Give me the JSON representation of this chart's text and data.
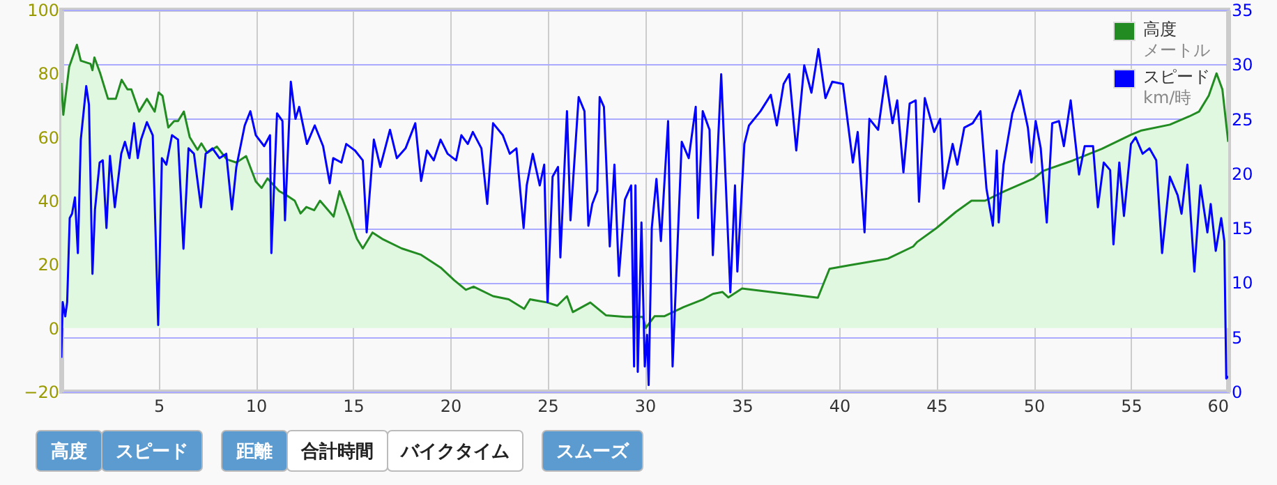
{
  "chart_data": {
    "type": "area",
    "xlim": [
      0,
      60
    ],
    "xticks": [
      5,
      10,
      15,
      20,
      25,
      30,
      35,
      40,
      45,
      50,
      55,
      60
    ],
    "ylim": [
      -20,
      100
    ],
    "yticks": [
      -20,
      0,
      20,
      40,
      60,
      80,
      100
    ],
    "y2lim": [
      0,
      35
    ],
    "y2ticks": [
      0,
      5,
      10,
      15,
      20,
      25,
      30,
      35
    ],
    "grid": true,
    "legend": "top right",
    "annotations": [
      "メートル",
      "km/時",
      "高度",
      "スピード",
      "距離",
      "合計時間",
      "バイクタイム",
      "スムーズ"
    ],
    "series": [
      {
        "name": "高度",
        "color": "#228b22",
        "x": [
          0,
          0.1,
          0.4,
          0.8,
          1.0,
          1.5,
          1.6,
          1.7,
          2.0,
          2.4,
          2.8,
          3.1,
          3.4,
          3.6,
          4.0,
          4.4,
          4.8,
          5.0,
          5.2,
          5.5,
          5.8,
          6.0,
          6.3,
          6.6,
          7.0,
          7.2,
          7.5,
          8.0,
          8.5,
          9.0,
          9.5,
          10.0,
          10.3,
          10.6,
          11.2,
          11.5,
          12.0,
          12.3,
          12.6,
          13.0,
          13.3,
          14.0,
          14.3,
          14.8,
          15.2,
          15.5,
          16.0,
          16.5,
          17.5,
          18.5,
          19.5,
          20.2,
          20.8,
          21.2,
          22.2,
          23.0,
          23.8,
          24.1,
          25.0,
          25.5,
          26.0,
          26.3,
          27.2,
          28.0,
          29.0,
          29.9,
          30.05,
          30.5,
          31.0,
          32.0,
          33.0,
          33.5,
          34.0,
          34.3,
          35.0,
          38.9,
          39.5,
          40.5,
          42.5,
          43.8,
          44.0,
          45.0,
          46.0,
          46.8,
          47.5,
          48.5,
          50.0,
          50.5,
          52.0,
          53.5,
          55.0,
          55.5,
          57.0,
          58.0,
          58.5,
          59.0,
          59.4,
          59.7,
          60.0
        ],
        "values": [
          77,
          67,
          82,
          89,
          84,
          83,
          81,
          85,
          80,
          72,
          72,
          78,
          75,
          75,
          68,
          72,
          68,
          74,
          73,
          63,
          65,
          65,
          68,
          60,
          56,
          58,
          55,
          57,
          53,
          52,
          54,
          46,
          44,
          47,
          43,
          42,
          40,
          36,
          38,
          37,
          40,
          35,
          43,
          35,
          28,
          25,
          30,
          28,
          25,
          23,
          19,
          15,
          12,
          13,
          10,
          9,
          6,
          9,
          8,
          7,
          10,
          5,
          8,
          4,
          3.5,
          3.5,
          0,
          3.7,
          3.7,
          6.6,
          9,
          10.7,
          11.3,
          9.6,
          12.4,
          9.5,
          18.6,
          19.7,
          21.8,
          25.6,
          27,
          31.4,
          36.5,
          40,
          40,
          43,
          47,
          49.4,
          52.6,
          56.3,
          60.7,
          62,
          63.9,
          66.5,
          68,
          73,
          80,
          75,
          58.5
        ]
      },
      {
        "name": "スピード",
        "type": "line",
        "axis": "y2",
        "color": "#0000ff",
        "x": [
          0,
          0.07,
          0.2,
          0.3,
          0.43,
          0.55,
          0.7,
          0.85,
          1.0,
          1.28,
          1.42,
          1.6,
          1.73,
          1.97,
          2.13,
          2.32,
          2.5,
          2.75,
          3.08,
          3.27,
          3.5,
          3.74,
          3.93,
          4.1,
          4.4,
          4.7,
          4.98,
          5.17,
          5.4,
          5.69,
          6.0,
          6.28,
          6.54,
          6.82,
          7.18,
          7.42,
          7.77,
          8.13,
          8.48,
          8.77,
          9.0,
          9.43,
          9.72,
          10.0,
          10.43,
          10.73,
          10.8,
          11.09,
          11.37,
          11.5,
          11.8,
          12.04,
          12.23,
          12.63,
          13.03,
          13.46,
          13.8,
          13.98,
          14.4,
          14.65,
          15.1,
          15.5,
          15.7,
          16.07,
          16.4,
          16.9,
          17.25,
          17.7,
          18.2,
          18.5,
          18.8,
          19.15,
          19.5,
          19.86,
          20.3,
          20.57,
          20.9,
          21.16,
          21.6,
          21.9,
          22.2,
          22.7,
          23.06,
          23.4,
          23.77,
          23.93,
          24.24,
          24.6,
          24.83,
          25.0,
          25.26,
          25.54,
          25.66,
          26.0,
          26.18,
          26.6,
          26.9,
          27.1,
          27.3,
          27.56,
          27.68,
          27.9,
          28.2,
          28.44,
          28.67,
          28.98,
          29.3,
          29.45,
          29.52,
          29.64,
          29.83,
          30.0,
          30.12,
          30.2,
          30.36,
          30.6,
          30.83,
          31.2,
          31.43,
          31.9,
          32.26,
          32.62,
          32.74,
          32.98,
          33.33,
          33.5,
          33.93,
          34.4,
          34.64,
          34.76,
          35.12,
          35.36,
          35.95,
          36.48,
          36.79,
          37.14,
          37.43,
          37.79,
          38.2,
          38.57,
          38.93,
          39.29,
          39.64,
          40.19,
          40.7,
          40.95,
          41.3,
          41.55,
          42.0,
          42.38,
          42.74,
          42.98,
          43.3,
          43.62,
          43.93,
          44.1,
          44.4,
          44.88,
          45.19,
          45.36,
          45.83,
          46.07,
          46.43,
          46.86,
          47.26,
          47.57,
          47.9,
          48.1,
          48.2,
          48.45,
          48.9,
          49.3,
          49.7,
          49.88,
          50.1,
          50.36,
          50.67,
          50.95,
          51.3,
          51.55,
          51.9,
          52.33,
          52.62,
          53.05,
          53.3,
          53.6,
          53.93,
          54.1,
          54.4,
          54.64,
          55.0,
          55.24,
          55.6,
          55.95,
          56.3,
          56.6,
          57.0,
          57.4,
          57.6,
          57.9,
          58.26,
          58.57,
          58.93,
          59.1,
          59.36,
          59.64,
          59.8,
          59.9,
          60.0
        ],
        "values": [
          3.1,
          8.2,
          6.9,
          8.2,
          15.9,
          16.3,
          17.8,
          12.7,
          23.1,
          28,
          26.3,
          10.8,
          16.7,
          21,
          21.2,
          15,
          21.6,
          16.9,
          21.8,
          22.9,
          21.4,
          24.6,
          21.4,
          23.1,
          24.7,
          23.5,
          6.1,
          21.4,
          20.8,
          23.5,
          23.1,
          13.1,
          22.3,
          21.8,
          16.9,
          21.8,
          22.3,
          21.4,
          21.8,
          16.7,
          20.6,
          24.4,
          25.7,
          23.5,
          22.5,
          23.5,
          12.7,
          25.5,
          24.8,
          15.7,
          28.4,
          25,
          26.1,
          22.7,
          24.4,
          22.5,
          19.1,
          21.4,
          21,
          22.7,
          22.1,
          21.2,
          14.6,
          23.1,
          20.6,
          24,
          21.4,
          22.3,
          24.6,
          19.3,
          22.1,
          21.2,
          23.1,
          21.8,
          21.2,
          23.5,
          22.7,
          23.8,
          22.3,
          17.2,
          24.6,
          23.5,
          21.8,
          22.3,
          15,
          18.9,
          21.8,
          18.9,
          20.8,
          8.2,
          19.7,
          20.6,
          12.3,
          25.7,
          15.7,
          27,
          25.7,
          15.2,
          17.2,
          18.4,
          27,
          26.1,
          13.3,
          20.8,
          10.6,
          17.6,
          18.9,
          2.3,
          18.9,
          1.8,
          15.5,
          2.3,
          5.2,
          0.6,
          15,
          19.5,
          13.8,
          24.8,
          2.3,
          22.9,
          21.4,
          26.1,
          15.9,
          25.7,
          24,
          12.5,
          29.1,
          9.1,
          18.9,
          11,
          22.7,
          24.4,
          25.7,
          27.2,
          24.4,
          28.2,
          29.1,
          22.1,
          29.9,
          27.4,
          31.4,
          26.9,
          28.4,
          28.2,
          21,
          23.8,
          14.6,
          25,
          24,
          28.9,
          24.6,
          26.7,
          20.1,
          26.4,
          26.7,
          17.4,
          26.9,
          23.8,
          25,
          18.6,
          22.7,
          20.8,
          24.2,
          24.6,
          25.7,
          18.6,
          15.2,
          22.1,
          15.5,
          20.8,
          25.5,
          27.6,
          24.2,
          21,
          24.8,
          22.3,
          15.5,
          24.6,
          24.8,
          22.5,
          26.7,
          19.9,
          22.5,
          22.5,
          16.9,
          21,
          20.3,
          13.5,
          21,
          16.1,
          22.7,
          23.3,
          21.8,
          22.3,
          21.2,
          12.7,
          19.7,
          18,
          16.3,
          20.8,
          11,
          18.9,
          14.6,
          17.2,
          12.9,
          15.9,
          13.8,
          1.2,
          1.4
        ]
      }
    ]
  }
}
